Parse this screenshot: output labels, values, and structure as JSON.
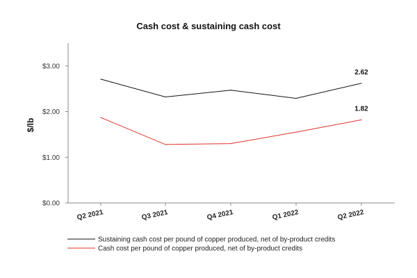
{
  "chart_data": {
    "type": "line",
    "title": "Cash cost & sustaining cash cost",
    "ylabel": "$/lb",
    "xlabel": "",
    "categories": [
      "Q2 2021",
      "Q3 2021",
      "Q4 2021",
      "Q1 2022",
      "Q2 2022"
    ],
    "ylim": [
      0,
      3.5
    ],
    "yticks": [
      0,
      1,
      2,
      3
    ],
    "ytick_labels": [
      "$0.00",
      "$1.00",
      "$2.00",
      "$3.00"
    ],
    "grid": false,
    "legend_position": "bottom-left",
    "series": [
      {
        "name": "Sustaining cash cost per pound of copper produced, net of by-product credits",
        "color": "#111111",
        "values": [
          2.71,
          2.32,
          2.47,
          2.29,
          2.62
        ],
        "end_label": "2.62"
      },
      {
        "name": "Cash cost per pound of copper produced, net of by-product credits",
        "color": "#e0302a",
        "values": [
          1.87,
          1.28,
          1.3,
          1.55,
          1.82
        ],
        "end_label": "1.82"
      }
    ]
  }
}
